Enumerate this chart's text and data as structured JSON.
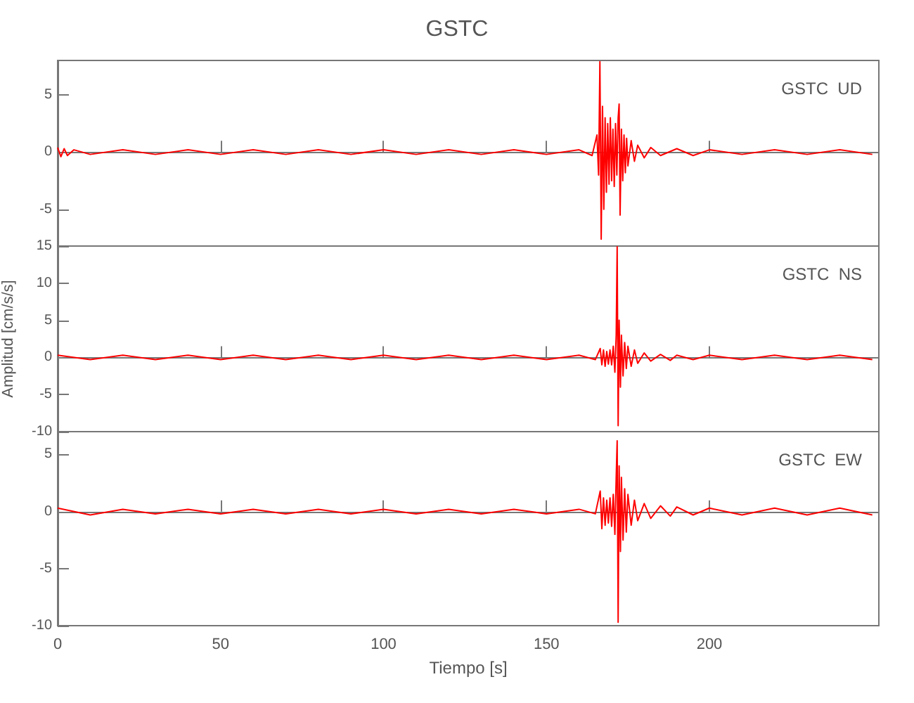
{
  "chart_data": [
    {
      "type": "line",
      "title": "GSTC",
      "annotations": [
        "GSTC  UD"
      ],
      "color": "#ff0000",
      "marker": "none",
      "tick_labels": "y",
      "xlim": [
        0,
        252
      ],
      "xticks": [
        0,
        50,
        100,
        150,
        200
      ],
      "ylim": [
        -8.2,
        8
      ],
      "yticks": [
        -5,
        0,
        5
      ],
      "x": [
        0,
        1,
        2,
        3,
        5,
        10,
        20,
        30,
        40,
        50,
        60,
        70,
        80,
        90,
        100,
        110,
        120,
        130,
        140,
        150,
        160,
        164,
        165.5,
        166,
        166.4,
        166.8,
        167.2,
        167.6,
        168,
        168.4,
        168.8,
        169.2,
        169.6,
        170,
        170.4,
        170.8,
        171.2,
        171.6,
        172,
        172.3,
        172.6,
        173,
        173.4,
        173.8,
        174.2,
        174.6,
        175,
        176,
        177,
        178,
        180,
        182,
        185,
        190,
        195,
        200,
        210,
        220,
        230,
        240,
        250
      ],
      "values": [
        0.4,
        -0.4,
        0.3,
        -0.3,
        0.2,
        -0.2,
        0.2,
        -0.2,
        0.2,
        -0.2,
        0.2,
        -0.2,
        0.2,
        -0.2,
        0.2,
        -0.2,
        0.2,
        -0.2,
        0.2,
        -0.2,
        0.2,
        -0.3,
        1.5,
        -2,
        7.9,
        -7.6,
        4,
        -5,
        3,
        -3.5,
        2.5,
        -2.8,
        3,
        -2.5,
        2,
        -3,
        2.5,
        -2,
        3,
        4.2,
        -5.5,
        2,
        -2.5,
        1.5,
        -1.8,
        1.2,
        -1.2,
        1,
        -0.8,
        0.6,
        -0.5,
        0.4,
        -0.3,
        0.3,
        -0.3,
        0.2,
        -0.2,
        0.2,
        -0.2,
        0.2,
        -0.2
      ]
    },
    {
      "type": "line",
      "ylabel": "Amplitud [cm/s/s]",
      "annotations": [
        "GSTC  NS"
      ],
      "color": "#ff0000",
      "marker": "none",
      "tick_labels": "y",
      "xlim": [
        0,
        252
      ],
      "xticks": [
        0,
        50,
        100,
        150,
        200
      ],
      "ylim": [
        -10,
        15
      ],
      "yticks": [
        -10,
        -5,
        0,
        5,
        10,
        15
      ],
      "x": [
        0,
        10,
        20,
        30,
        40,
        50,
        60,
        70,
        80,
        90,
        100,
        110,
        120,
        130,
        140,
        150,
        160,
        165,
        166.5,
        167,
        167.5,
        168,
        168.5,
        169,
        169.5,
        170,
        170.5,
        171,
        171.4,
        171.7,
        172,
        172.3,
        172.7,
        173,
        173.5,
        174,
        174.5,
        175,
        176,
        177,
        178,
        180,
        182,
        185,
        188,
        190,
        195,
        200,
        210,
        220,
        230,
        240,
        250
      ],
      "values": [
        0.3,
        -0.3,
        0.3,
        -0.3,
        0.3,
        -0.3,
        0.3,
        -0.3,
        0.3,
        -0.3,
        0.3,
        -0.3,
        0.3,
        -0.3,
        0.3,
        -0.3,
        0.3,
        -0.3,
        1.2,
        -1,
        1,
        -1.2,
        0.8,
        -0.9,
        1,
        -1,
        1.5,
        -2,
        3,
        14.9,
        -9.2,
        5,
        -4,
        3,
        -2.5,
        2,
        -1.5,
        1.5,
        -1.2,
        1,
        -0.8,
        0.6,
        -0.5,
        0.4,
        -0.4,
        0.3,
        -0.3,
        0.3,
        -0.3,
        0.3,
        -0.3,
        0.3,
        -0.3
      ]
    },
    {
      "type": "line",
      "xlabel": "Tiempo [s]",
      "annotations": [
        "GSTC  EW"
      ],
      "color": "#ff0000",
      "marker": "none",
      "xlim": [
        0,
        252
      ],
      "xticks": [
        0,
        50,
        100,
        150,
        200
      ],
      "ylim": [
        -10,
        7
      ],
      "yticks": [
        -10,
        -5,
        0,
        5
      ],
      "x": [
        0,
        10,
        20,
        30,
        40,
        50,
        60,
        70,
        80,
        90,
        100,
        110,
        120,
        130,
        140,
        150,
        160,
        165,
        166.5,
        167,
        167.5,
        168,
        168.5,
        169,
        169.5,
        170,
        170.5,
        171,
        171.4,
        171.7,
        172,
        172.3,
        172.7,
        173,
        173.5,
        174,
        174.5,
        175,
        176,
        177,
        178,
        180,
        182,
        185,
        188,
        190,
        195,
        200,
        210,
        220,
        230,
        240,
        250
      ],
      "values": [
        0.3,
        -0.3,
        0.2,
        -0.2,
        0.2,
        -0.2,
        0.2,
        -0.2,
        0.2,
        -0.2,
        0.2,
        -0.2,
        0.2,
        -0.2,
        0.2,
        -0.2,
        0.2,
        -0.2,
        1.8,
        -1.5,
        1.2,
        -1.2,
        1,
        -1,
        1.2,
        -1.3,
        1.5,
        -2,
        3,
        6.2,
        -9.7,
        4,
        -3.5,
        3,
        -2.5,
        2,
        -1.8,
        1.5,
        -1.2,
        1,
        -0.8,
        0.7,
        -0.6,
        0.5,
        -0.4,
        0.4,
        -0.3,
        0.3,
        -0.3,
        0.3,
        -0.3,
        0.3,
        -0.3
      ]
    }
  ]
}
